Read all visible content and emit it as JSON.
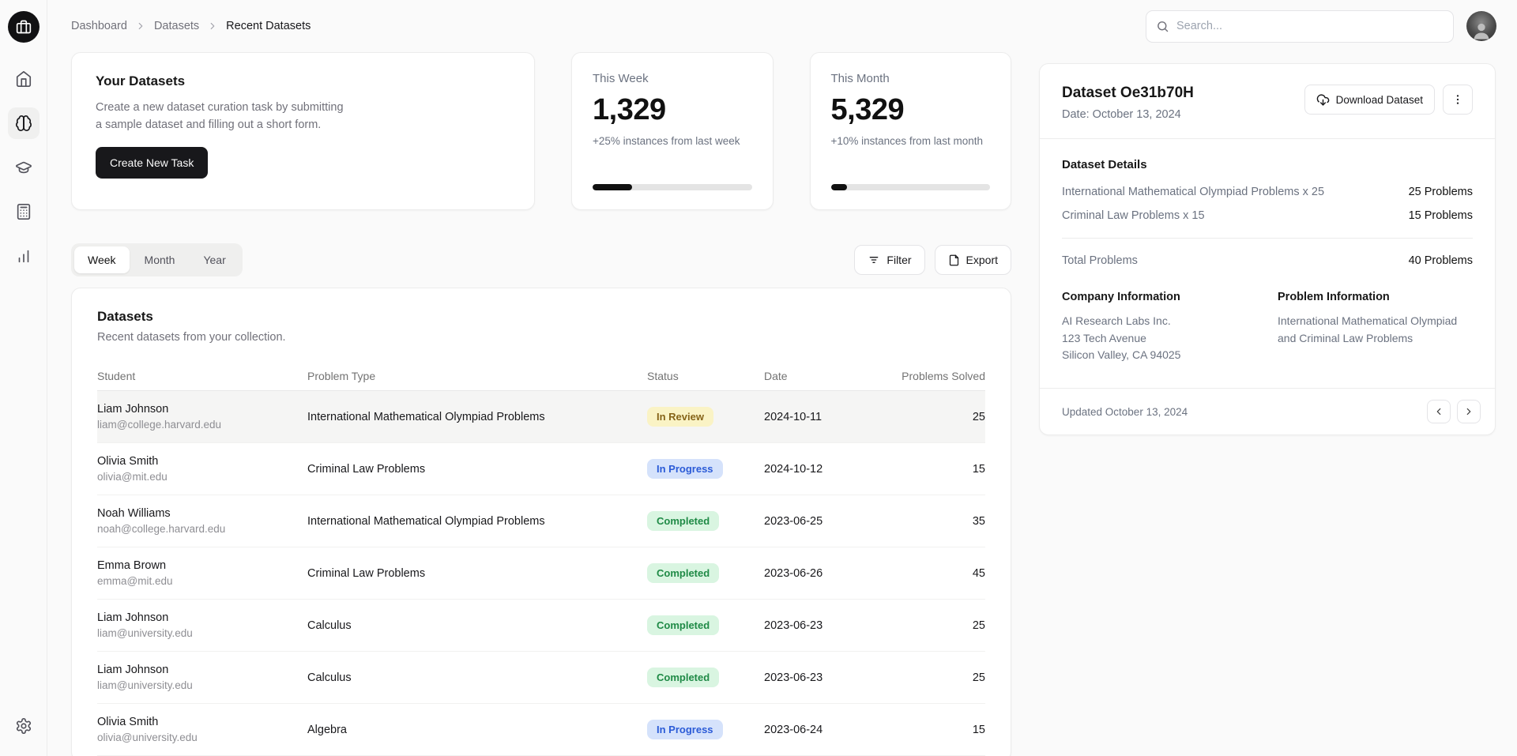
{
  "sidebar": {
    "logo_icon": "briefcase-icon",
    "items": [
      {
        "id": "home",
        "icon": "home-icon",
        "active": false
      },
      {
        "id": "datasets",
        "icon": "brain-icon",
        "active": true
      },
      {
        "id": "education",
        "icon": "graduation-cap-icon",
        "active": false
      },
      {
        "id": "calculator",
        "icon": "calculator-icon",
        "active": false
      },
      {
        "id": "analytics",
        "icon": "bar-chart-icon",
        "active": false
      }
    ],
    "bottom_icon": "gear-icon"
  },
  "header": {
    "breadcrumb": [
      "Dashboard",
      "Datasets",
      "Recent Datasets"
    ],
    "search_placeholder": "Search..."
  },
  "your_datasets": {
    "title": "Your Datasets",
    "description_line1": "Create a new dataset curation task by submitting",
    "description_line2": "a sample dataset and filling out a short form.",
    "button_label": "Create New Task"
  },
  "stats": [
    {
      "label": "This Week",
      "value": "1,329",
      "delta": "+25% instances from last week",
      "progress_pct": 25
    },
    {
      "label": "This Month",
      "value": "5,329",
      "delta": "+10% instances from last month",
      "progress_pct": 10
    }
  ],
  "toolbar": {
    "tabs": [
      {
        "label": "Week",
        "active": true
      },
      {
        "label": "Month",
        "active": false
      },
      {
        "label": "Year",
        "active": false
      }
    ],
    "filter_label": "Filter",
    "export_label": "Export"
  },
  "datasets_table": {
    "title": "Datasets",
    "subtitle": "Recent datasets from your collection.",
    "columns": [
      "Student",
      "Problem Type",
      "Status",
      "Date",
      "Problems Solved"
    ],
    "rows": [
      {
        "student": "Liam Johnson",
        "email": "liam@college.harvard.edu",
        "problem_type": "International Mathematical Olympiad Problems",
        "status": "In Review",
        "status_type": "review",
        "date": "2024-10-11",
        "problems_solved": "25",
        "highlighted": true
      },
      {
        "student": "Olivia Smith",
        "email": "olivia@mit.edu",
        "problem_type": "Criminal Law Problems",
        "status": "In Progress",
        "status_type": "progress",
        "date": "2024-10-12",
        "problems_solved": "15",
        "highlighted": false
      },
      {
        "student": "Noah Williams",
        "email": "noah@college.harvard.edu",
        "problem_type": "International Mathematical Olympiad Problems",
        "status": "Completed",
        "status_type": "completed",
        "date": "2023-06-25",
        "problems_solved": "35",
        "highlighted": false
      },
      {
        "student": "Emma Brown",
        "email": "emma@mit.edu",
        "problem_type": "Criminal Law Problems",
        "status": "Completed",
        "status_type": "completed",
        "date": "2023-06-26",
        "problems_solved": "45",
        "highlighted": false
      },
      {
        "student": "Liam Johnson",
        "email": "liam@university.edu",
        "problem_type": "Calculus",
        "status": "Completed",
        "status_type": "completed",
        "date": "2023-06-23",
        "problems_solved": "25",
        "highlighted": false
      },
      {
        "student": "Liam Johnson",
        "email": "liam@university.edu",
        "problem_type": "Calculus",
        "status": "Completed",
        "status_type": "completed",
        "date": "2023-06-23",
        "problems_solved": "25",
        "highlighted": false
      },
      {
        "student": "Olivia Smith",
        "email": "olivia@university.edu",
        "problem_type": "Algebra",
        "status": "In Progress",
        "status_type": "progress",
        "date": "2023-06-24",
        "problems_solved": "15",
        "highlighted": false
      }
    ]
  },
  "detail_panel": {
    "title": "Dataset Oe31b70H",
    "date": "Date: October 13, 2024",
    "download_label": "Download Dataset",
    "kebab_icon": "kebab-menu-icon",
    "details_heading": "Dataset Details",
    "detail_rows": [
      {
        "label": "International Mathematical Olympiad Problems x 25",
        "value": "25 Problems"
      },
      {
        "label": "Criminal Law Problems x 15",
        "value": "15 Problems"
      }
    ],
    "total_label": "Total Problems",
    "total_value": "40 Problems",
    "company_heading": "Company Information",
    "company_lines": [
      "AI Research Labs Inc.",
      "123 Tech Avenue",
      "Silicon Valley, CA 94025"
    ],
    "problem_heading": "Problem Information",
    "problem_text": "International Mathematical Olympiad and Criminal Law Problems",
    "updated": "Updated October 13, 2024"
  },
  "colors": {
    "background": "#fafafa",
    "card_border": "#ececec",
    "primary_button": "#18181b",
    "progress_fill": "#111111",
    "badge_review_bg": "#faf3c5",
    "badge_review_text": "#866419",
    "badge_progress_bg": "#d5e2fb",
    "badge_progress_text": "#2b5bd7",
    "badge_completed_bg": "#d9f5e1",
    "badge_completed_text": "#1f8a46"
  }
}
